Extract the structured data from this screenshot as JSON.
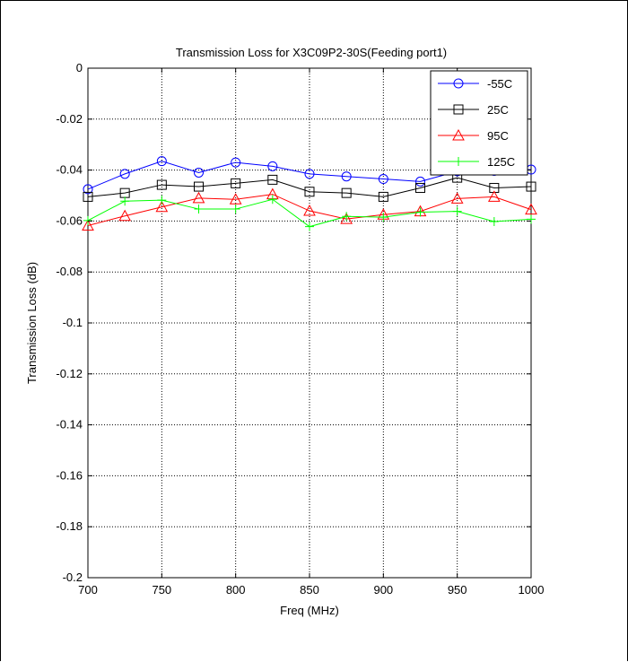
{
  "chart_data": {
    "type": "line",
    "title": "Transmission Loss for X3C09P2-30S(Feeding port1)",
    "xlabel": "Freq (MHz)",
    "ylabel": "Transmission Loss (dB)",
    "xlim": [
      700,
      1000
    ],
    "ylim": [
      -0.2,
      0
    ],
    "xticks": [
      700,
      750,
      800,
      850,
      900,
      950,
      1000
    ],
    "yticks": [
      0,
      -0.02,
      -0.04,
      -0.06,
      -0.08,
      -0.1,
      -0.12,
      -0.14,
      -0.16,
      -0.18,
      -0.2
    ],
    "ytick_labels": [
      "0",
      "-0.02",
      "-0.04",
      "-0.06",
      "-0.08",
      "-0.1",
      "-0.12",
      "-0.14",
      "-0.16",
      "-0.18",
      "-0.2"
    ],
    "xtick_labels": [
      "700",
      "750",
      "800",
      "850",
      "900",
      "950",
      "1000"
    ],
    "grid": true,
    "legend_position": "top-right",
    "x": [
      700,
      725,
      750,
      775,
      800,
      825,
      850,
      875,
      900,
      925,
      950,
      975,
      1000
    ],
    "series": [
      {
        "name": "-55C",
        "color": "#0000ff",
        "marker": "circle",
        "values": [
          -0.0475,
          -0.0415,
          -0.0365,
          -0.041,
          -0.037,
          -0.0385,
          -0.0415,
          -0.0425,
          -0.0435,
          -0.0445,
          -0.0405,
          -0.0403,
          -0.0398
        ]
      },
      {
        "name": "25C",
        "color": "#000000",
        "marker": "square",
        "values": [
          -0.0505,
          -0.049,
          -0.0458,
          -0.0465,
          -0.0452,
          -0.0438,
          -0.0485,
          -0.049,
          -0.0505,
          -0.047,
          -0.043,
          -0.047,
          -0.0465
        ]
      },
      {
        "name": "95C",
        "color": "#ff0000",
        "marker": "triangle",
        "values": [
          -0.0618,
          -0.058,
          -0.0545,
          -0.051,
          -0.0515,
          -0.0495,
          -0.056,
          -0.0592,
          -0.0575,
          -0.0562,
          -0.0512,
          -0.0505,
          -0.0555
        ]
      },
      {
        "name": "125C",
        "color": "#00ff00",
        "marker": "plus",
        "values": [
          -0.0598,
          -0.0522,
          -0.0518,
          -0.0553,
          -0.0553,
          -0.0515,
          -0.0622,
          -0.0582,
          -0.0585,
          -0.0565,
          -0.0562,
          -0.0602,
          -0.0593
        ]
      }
    ]
  }
}
